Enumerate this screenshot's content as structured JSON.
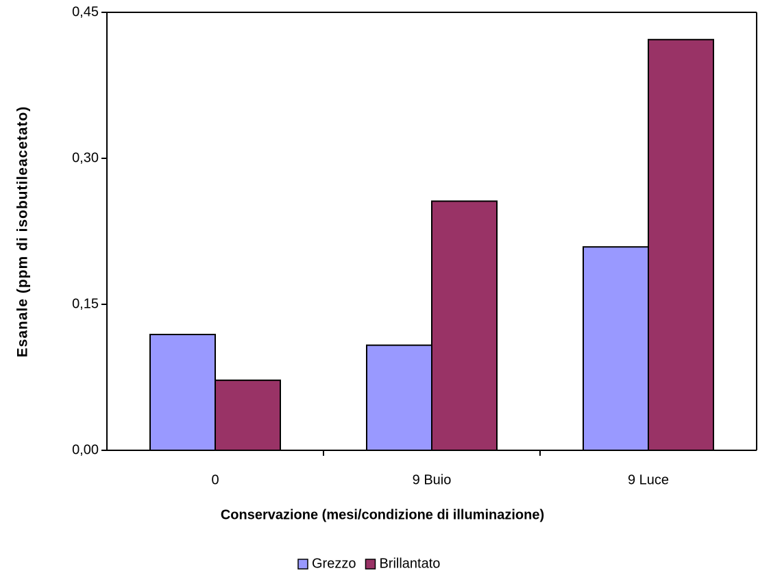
{
  "chart_data": {
    "type": "bar",
    "x_label": "Conservazione (mesi/condizione di illuminazione)",
    "y_label": "Esanale (ppm di isobutileacetato)",
    "categories": [
      "0",
      "9 Buio",
      "9 Luce"
    ],
    "series": [
      {
        "name": "Grezzo",
        "color": "#9999ff",
        "values": [
          0.119,
          0.108,
          0.209
        ]
      },
      {
        "name": "Brillantato",
        "color": "#993366",
        "values": [
          0.072,
          0.256,
          0.422
        ]
      }
    ],
    "ylim": [
      0,
      0.45
    ],
    "yticks": [
      {
        "value": 0,
        "label": "0,00"
      },
      {
        "value": 0.15,
        "label": "0,15"
      },
      {
        "value": 0.3,
        "label": "0,30"
      },
      {
        "value": 0.45,
        "label": "0,45"
      }
    ],
    "legend": "bottom"
  }
}
